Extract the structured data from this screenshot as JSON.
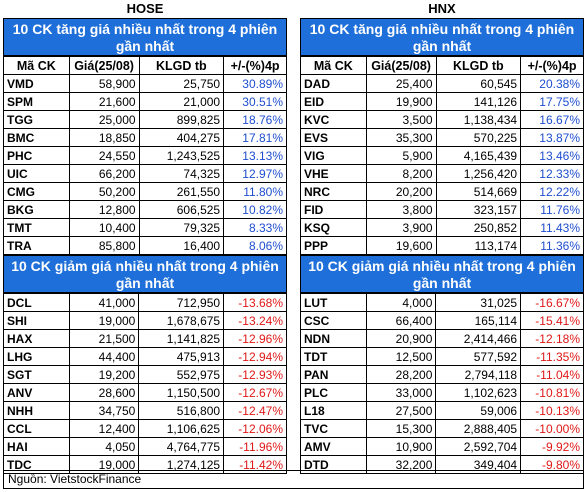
{
  "hose": {
    "exchange": "HOSE",
    "up_title": "10 CK tăng giá nhiều nhất trong 4 phiên gần nhất",
    "down_title": "10 CK giảm giá nhiều nhất trong 4 phiên gần nhất",
    "headers": [
      "Mã CK",
      "Giá(25/08)",
      "KLGD tb",
      "+/-(%)4p"
    ],
    "up_rows": [
      [
        "VMD",
        "58,900",
        "25,750",
        "30.89%"
      ],
      [
        "SPM",
        "21,600",
        "21,000",
        "30.51%"
      ],
      [
        "TGG",
        "25,000",
        "899,825",
        "18.76%"
      ],
      [
        "BMC",
        "18,850",
        "404,275",
        "17.81%"
      ],
      [
        "PHC",
        "24,550",
        "1,243,525",
        "13.13%"
      ],
      [
        "UIC",
        "66,200",
        "74,325",
        "12.97%"
      ],
      [
        "CMG",
        "50,200",
        "261,550",
        "11.80%"
      ],
      [
        "BKG",
        "12,800",
        "606,525",
        "10.82%"
      ],
      [
        "TMT",
        "10,400",
        "79,325",
        "8.33%"
      ],
      [
        "TRA",
        "85,800",
        "16,400",
        "8.06%"
      ]
    ],
    "down_rows": [
      [
        "DCL",
        "41,000",
        "712,950",
        "-13.68%"
      ],
      [
        "SHI",
        "19,000",
        "1,678,675",
        "-13.24%"
      ],
      [
        "HAX",
        "21,500",
        "1,141,825",
        "-12.96%"
      ],
      [
        "LHG",
        "44,400",
        "475,913",
        "-12.94%"
      ],
      [
        "SGT",
        "19,200",
        "552,975",
        "-12.93%"
      ],
      [
        "ANV",
        "28,600",
        "1,150,500",
        "-12.67%"
      ],
      [
        "NHH",
        "34,750",
        "516,800",
        "-12.47%"
      ],
      [
        "CCL",
        "12,400",
        "1,106,625",
        "-12.06%"
      ],
      [
        "HAI",
        "4,050",
        "4,764,775",
        "-11.96%"
      ],
      [
        "TDC",
        "19,000",
        "1,274,125",
        "-11.42%"
      ]
    ]
  },
  "hnx": {
    "exchange": "HNX",
    "up_title": "10 CK tăng giá nhiều nhất trong 4 phiên gần nhất",
    "down_title": "10 CK giảm giá nhiều nhất trong 4 phiên gần nhất",
    "headers": [
      "Mã CK",
      "Giá(25/08)",
      "KLGD tb",
      "+/-(%)4p"
    ],
    "up_rows": [
      [
        "DAD",
        "25,400",
        "60,545",
        "20.38%"
      ],
      [
        "EID",
        "19,900",
        "141,126",
        "17.75%"
      ],
      [
        "KVC",
        "3,500",
        "1,138,434",
        "16.67%"
      ],
      [
        "EVS",
        "35,300",
        "570,225",
        "13.87%"
      ],
      [
        "VIG",
        "5,900",
        "4,165,439",
        "13.46%"
      ],
      [
        "VHE",
        "8,200",
        "1,256,420",
        "12.33%"
      ],
      [
        "NRC",
        "20,200",
        "514,669",
        "12.22%"
      ],
      [
        "FID",
        "3,800",
        "323,157",
        "11.76%"
      ],
      [
        "KSQ",
        "3,900",
        "250,852",
        "11.43%"
      ],
      [
        "PPP",
        "19,600",
        "113,174",
        "11.36%"
      ]
    ],
    "down_rows": [
      [
        "LUT",
        "4,000",
        "31,025",
        "-16.67%"
      ],
      [
        "CSC",
        "66,400",
        "165,114",
        "-15.41%"
      ],
      [
        "NDN",
        "20,900",
        "2,414,466",
        "-12.18%"
      ],
      [
        "TDT",
        "12,500",
        "577,592",
        "-11.35%"
      ],
      [
        "PAN",
        "28,200",
        "2,794,118",
        "-11.04%"
      ],
      [
        "PLC",
        "33,000",
        "1,102,623",
        "-10.81%"
      ],
      [
        "L18",
        "27,500",
        "59,006",
        "-10.13%"
      ],
      [
        "TVC",
        "15,300",
        "2,888,405",
        "-10.00%"
      ],
      [
        "AMV",
        "10,900",
        "2,592,704",
        "-9.92%"
      ],
      [
        "DTD",
        "32,200",
        "349,404",
        "-9.80%"
      ]
    ]
  },
  "source": "Nguồn: VietstockFinance",
  "colors": {
    "band": "#1e6fd9",
    "positive": "#1f4fd0",
    "negative": "#e01818"
  }
}
